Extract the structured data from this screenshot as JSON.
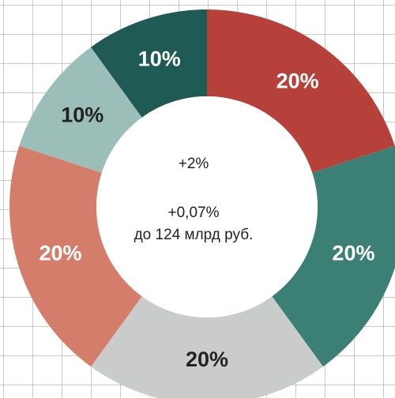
{
  "chart_data": {
    "type": "donut",
    "values": [
      20,
      20,
      20,
      20,
      10,
      10
    ],
    "value_labels": [
      "20%",
      "20%",
      "20%",
      "20%",
      "10%",
      "10%"
    ],
    "colors": [
      "#b5413a",
      "#3b7f75",
      "#c9cccb",
      "#d47d6b",
      "#9cbeb8",
      "#1f5a55"
    ],
    "annotations": [
      "+2%",
      "+0,07%",
      "до 124 млрд руб."
    ]
  }
}
